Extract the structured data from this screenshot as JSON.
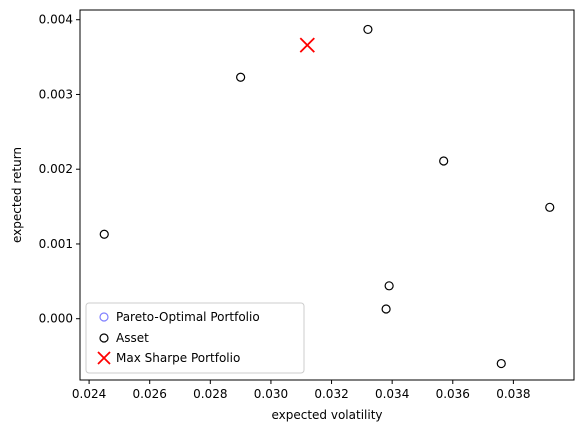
{
  "chart_data": {
    "type": "scatter",
    "title": "",
    "xlabel": "expected volatility",
    "ylabel": "expected return",
    "xlim": [
      0.0237,
      0.04
    ],
    "ylim": [
      -0.00082,
      0.00413
    ],
    "xticks": [
      0.024,
      0.026,
      0.028,
      0.03,
      0.032,
      0.034,
      0.036,
      0.038
    ],
    "xtick_labels": [
      "0.024",
      "0.026",
      "0.028",
      "0.030",
      "0.032",
      "0.034",
      "0.036",
      "0.038"
    ],
    "yticks": [
      0.0,
      0.001,
      0.002,
      0.003,
      0.004
    ],
    "ytick_labels": [
      "0.000",
      "0.001",
      "0.002",
      "0.003",
      "0.004"
    ],
    "grid": false,
    "legend_position": "lower-left",
    "series": [
      {
        "name": "Pareto-Optimal Portfolio",
        "marker": "open-circle",
        "color": "#8080ff",
        "points": []
      },
      {
        "name": "Asset",
        "marker": "open-circle",
        "color": "#000000",
        "points": [
          {
            "x": 0.0245,
            "y": 0.00113
          },
          {
            "x": 0.029,
            "y": 0.00323
          },
          {
            "x": 0.0332,
            "y": 0.00387
          },
          {
            "x": 0.0357,
            "y": 0.00211
          },
          {
            "x": 0.0339,
            "y": 0.00044
          },
          {
            "x": 0.0338,
            "y": 0.00013
          },
          {
            "x": 0.0376,
            "y": -0.0006
          },
          {
            "x": 0.0392,
            "y": 0.00149
          }
        ]
      },
      {
        "name": "Max Sharpe Portfolio",
        "marker": "x",
        "color": "#ff0000",
        "points": [
          {
            "x": 0.0312,
            "y": 0.00366
          }
        ]
      }
    ]
  }
}
